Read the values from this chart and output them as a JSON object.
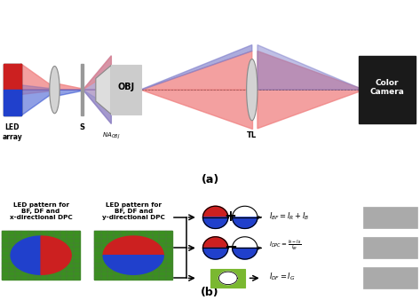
{
  "bg_color": "#ffffff",
  "panel_a_label": "(a)",
  "panel_b_label": "(b)",
  "led_array_label": "LED\narray",
  "s_label": "S",
  "obj_label": "OBJ",
  "na_label": "NA_OBJ",
  "tl_label": "TL",
  "camera_label": "Color\nCamera",
  "led_pattern_x_label": "LED pattern for\nBF, DF and\nx-directional DPC",
  "led_pattern_y_label": "LED pattern for\nBF, DF and\ny-directional DPC",
  "eq_bf": "$I_{BF} = I_R + I_B$",
  "eq_dpc": "$I_{DPC} = \\frac{I_R - I_B}{I_{BF}}$",
  "eq_df": "$I_{DF} = I_G$",
  "red_color": "#cc2020",
  "blue_color": "#2040cc",
  "green_color": "#5a9e2f",
  "pink_color": "#f08080",
  "light_blue_color": "#8080cc",
  "purple_color": "#9070b0"
}
